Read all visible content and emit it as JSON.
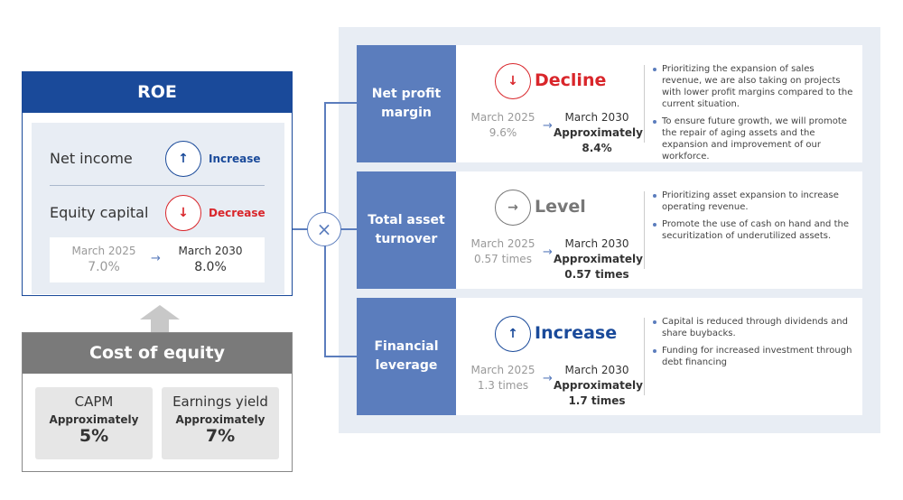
{
  "roe": {
    "title": "ROE",
    "items": [
      {
        "label": "Net income",
        "direction": "Increase",
        "icon": "arrow-up-icon",
        "color": "#1a4a9a"
      },
      {
        "label": "Equity capital",
        "direction": "Decrease",
        "icon": "arrow-down-icon",
        "color": "#d9262b"
      }
    ],
    "from_label": "March 2025",
    "from_value": "7.0%",
    "to_label": "March 2030",
    "to_value": "8.0%"
  },
  "cost_of_equity": {
    "title": "Cost of equity",
    "items": [
      {
        "label": "CAPM",
        "approx": "Approximately",
        "value": "5%"
      },
      {
        "label": "Earnings yield",
        "approx": "Approximately",
        "value": "7%"
      }
    ]
  },
  "multiply_symbol": "×",
  "drivers": [
    {
      "name": "Net profit margin",
      "name_l1": "Net profit",
      "name_l2": "margin",
      "direction": "Decline",
      "arrow": "↓",
      "color": "#d9262b",
      "from_label": "March 2025",
      "from_value": "9.6%",
      "to_label": "March 2030",
      "to_approx": "Approximately",
      "to_value": "8.4%",
      "notes": [
        "Prioritizing the expansion of sales revenue, we are also taking on projects with lower profit margins compared to the current situation.",
        "To ensure future growth, we will promote the repair of aging assets and the expansion and improvement of our workforce."
      ]
    },
    {
      "name": "Total asset turnover",
      "name_l1": "Total asset",
      "name_l2": "turnover",
      "direction": "Level",
      "arrow": "→",
      "color": "#777777",
      "from_label": "March 2025",
      "from_value": "0.57 times",
      "to_label": "March 2030",
      "to_approx": "Approximately",
      "to_value": "0.57 times",
      "notes": [
        "Prioritizing asset expansion to increase operating revenue.",
        "Promote the use of cash on hand and the securitization of underutilized assets."
      ]
    },
    {
      "name": "Financial leverage",
      "name_l1": "Financial",
      "name_l2": "leverage",
      "direction": "Increase",
      "arrow": "↑",
      "color": "#1a4a9a",
      "from_label": "March 2025",
      "from_value": "1.3 times",
      "to_label": "March 2030",
      "to_approx": "Approximately",
      "to_value": "1.7 times",
      "notes": [
        "Capital is reduced through dividends and share buybacks.",
        "Funding for increased investment through debt financing"
      ]
    }
  ]
}
